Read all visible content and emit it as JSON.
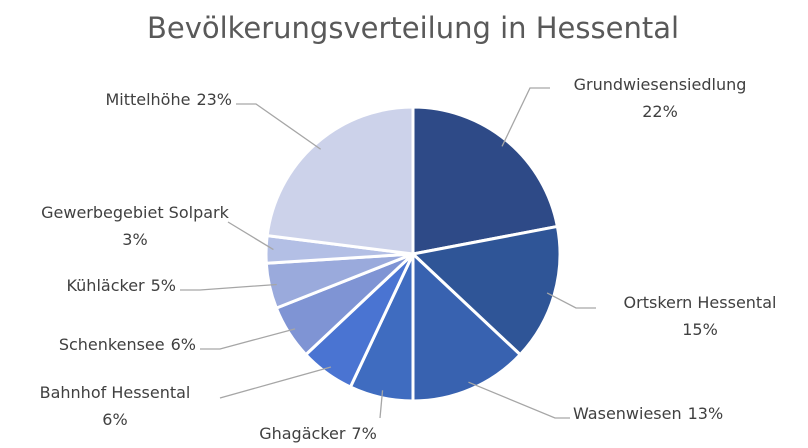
{
  "chart_data": {
    "type": "pie",
    "title": "Bevölkerungsverteilung in Hessental",
    "categories": [
      "Grundwiesensiedlung",
      "Ortskern Hessental",
      "Wasenwiesen",
      "Ghagäcker",
      "Bahnhof Hessental",
      "Schenkensee",
      "Kühläcker",
      "Gewerbegebiet Solpark",
      "Mittelhöhe"
    ],
    "values": [
      22,
      15,
      13,
      7,
      6,
      6,
      5,
      3,
      23
    ],
    "value_labels": [
      "22%",
      "15%",
      "13%",
      "7%",
      "6%",
      "6%",
      "5%",
      "3%",
      "23%"
    ],
    "colors": [
      "#2e4a87",
      "#2f5597",
      "#3862b0",
      "#3f6cc0",
      "#4a74d2",
      "#7f94d4",
      "#9aaadc",
      "#b3bfe5",
      "#ccd2ea"
    ]
  }
}
